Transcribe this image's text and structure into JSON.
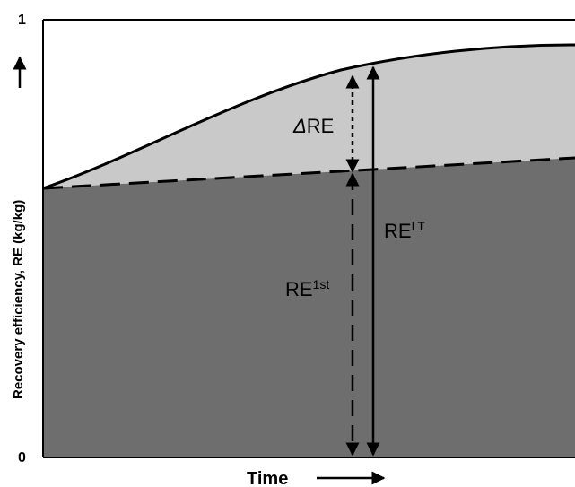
{
  "diagram": {
    "y_axis": {
      "label": "Recovery efficiency, RE (kg/kg)",
      "tick_top": "1",
      "tick_bottom": "0"
    },
    "x_axis": {
      "label": "Time"
    },
    "annotations": {
      "delta_re": {
        "symbol": "Δ",
        "text": "RE"
      },
      "re_lt": {
        "base": "RE",
        "sup": "LT"
      },
      "re_1st": {
        "base": "RE",
        "sup": "1st"
      }
    },
    "colors": {
      "dark_region": "#6e6e6e",
      "light_region": "#c9c9c9",
      "background": "#ffffff",
      "lines": "#000000"
    }
  }
}
